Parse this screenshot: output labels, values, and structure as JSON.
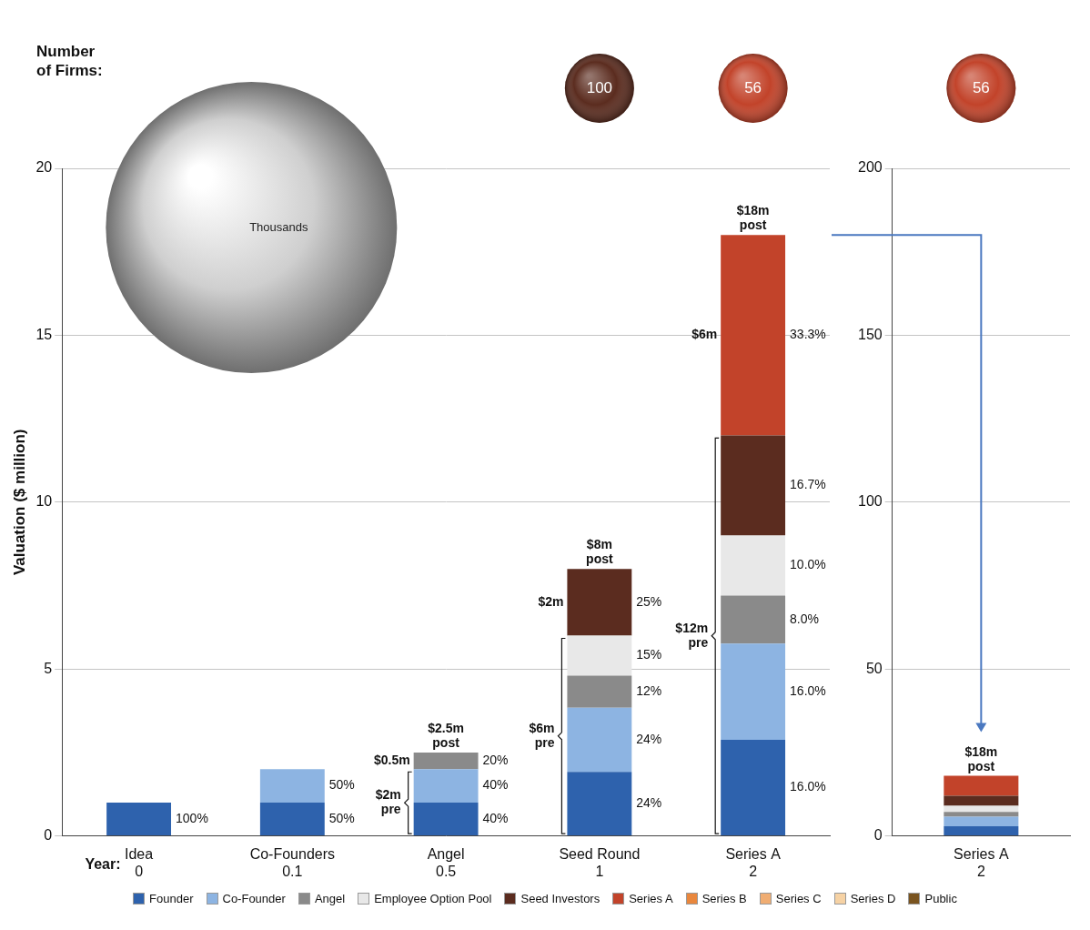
{
  "chart_data": [
    {
      "type": "bar",
      "stacked": true,
      "firms_title": "Number of Firms:",
      "y_label": "Valuation ($ million)",
      "year_label": "Year:",
      "categories": [
        "Idea",
        "Co-Founders",
        "Angel",
        "Seed Round",
        "Series A"
      ],
      "years": [
        0,
        0.1,
        0.5,
        1,
        2
      ],
      "ylim": [
        0,
        20
      ],
      "yticks": [
        0,
        5,
        10,
        15,
        20
      ],
      "grid": true,
      "legend": "bottom",
      "series": [
        {
          "name": "Founder",
          "color": "#2e62ad",
          "values": [
            1,
            1,
            1,
            1.92,
            2.88
          ],
          "percent_labels": [
            "100%",
            "50%",
            "40%",
            "24%",
            "16.0%"
          ]
        },
        {
          "name": "Co-Founder",
          "color": "#8db4e2",
          "values": [
            null,
            1,
            1,
            1.92,
            2.88
          ],
          "percent_labels": [
            null,
            "50%",
            "40%",
            "24%",
            "16.0%"
          ]
        },
        {
          "name": "Angel",
          "color": "#8a8a8a",
          "values": [
            null,
            null,
            0.5,
            0.96,
            1.44
          ],
          "percent_labels": [
            null,
            null,
            "20%",
            "12%",
            "8.0%"
          ]
        },
        {
          "name": "Employee Option Pool",
          "color": "#e8e8e8",
          "values": [
            null,
            null,
            null,
            1.2,
            1.8
          ],
          "percent_labels": [
            null,
            null,
            null,
            "15%",
            "10.0%"
          ]
        },
        {
          "name": "Seed Investors",
          "color": "#5b2c1f",
          "values": [
            null,
            null,
            null,
            2,
            3
          ],
          "percent_labels": [
            null,
            null,
            null,
            "25%",
            "16.7%"
          ]
        },
        {
          "name": "Series A",
          "color": "#c2432a",
          "values": [
            null,
            null,
            null,
            null,
            6
          ],
          "percent_labels": [
            null,
            null,
            null,
            null,
            "33.3%"
          ]
        },
        {
          "name": "Series B",
          "color": "#e9873d",
          "values": [
            null,
            null,
            null,
            null,
            null
          ]
        },
        {
          "name": "Series C",
          "color": "#f0ad72",
          "values": [
            null,
            null,
            null,
            null,
            null
          ]
        },
        {
          "name": "Series D",
          "color": "#f6d2a4",
          "values": [
            null,
            null,
            null,
            null,
            null
          ]
        },
        {
          "name": "Public",
          "color": "#7a5420",
          "values": [
            null,
            null,
            null,
            null,
            null
          ]
        }
      ],
      "valuations": [
        {
          "category": "Angel",
          "post": "$2.5m post",
          "new": "$0.5m",
          "pre": "$2m pre"
        },
        {
          "category": "Seed Round",
          "post": "$8m post",
          "new": "$2m",
          "pre": "$6m pre"
        },
        {
          "category": "Series A",
          "post": "$18m post",
          "new": "$6m",
          "pre": "$12m pre"
        }
      ],
      "firms": [
        {
          "category": "Co-Founders",
          "label": "Thousands"
        },
        {
          "category": "Seed Round",
          "value": 100,
          "color": "#5b2c1f"
        },
        {
          "category": "Series A",
          "value": 56,
          "color": "#c2432a"
        }
      ]
    },
    {
      "type": "bar",
      "stacked": true,
      "categories": [
        "Series A"
      ],
      "years": [
        2
      ],
      "ylim": [
        0,
        200
      ],
      "yticks": [
        0,
        50,
        100,
        150,
        200
      ],
      "grid": true,
      "series": [
        {
          "name": "Founder",
          "color": "#2e62ad",
          "values": [
            2.88
          ]
        },
        {
          "name": "Co-Founder",
          "color": "#8db4e2",
          "values": [
            2.88
          ]
        },
        {
          "name": "Angel",
          "color": "#8a8a8a",
          "values": [
            1.44
          ]
        },
        {
          "name": "Employee Option Pool",
          "color": "#e8e8e8",
          "values": [
            1.8
          ]
        },
        {
          "name": "Seed Investors",
          "color": "#5b2c1f",
          "values": [
            3
          ]
        },
        {
          "name": "Series A",
          "color": "#c2432a",
          "values": [
            6
          ]
        }
      ],
      "valuations": [
        {
          "category": "Series A",
          "post": "$18m post"
        }
      ],
      "firms": [
        {
          "category": "Series A",
          "value": 56,
          "color": "#c2432a"
        }
      ]
    }
  ]
}
